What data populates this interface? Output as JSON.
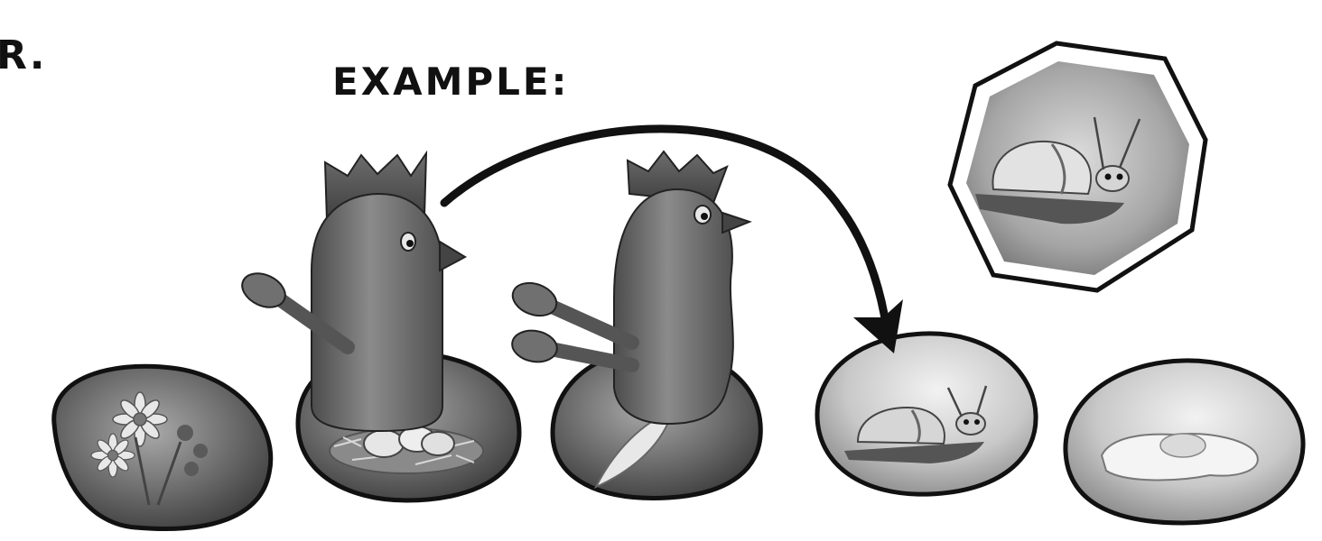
{
  "heading": {
    "partial_text": "R.",
    "example_label": "EXAMPLE:"
  },
  "tiles": [
    {
      "name": "flower-tile",
      "motif": "flowers"
    },
    {
      "name": "nest-tile",
      "motif": "nest-with-eggs"
    },
    {
      "name": "feather-tile",
      "motif": "feather"
    },
    {
      "name": "snail-tile",
      "motif": "snail"
    },
    {
      "name": "fried-egg-tile",
      "motif": "fried-egg"
    }
  ],
  "target_card": {
    "name": "snail-card",
    "motif": "snail",
    "shape": "octagon"
  },
  "figures": [
    {
      "name": "chicken-figure-one-wing",
      "wings": 1,
      "standing_on": "nest-tile"
    },
    {
      "name": "chicken-figure-two-wings",
      "wings": 2,
      "standing_on": "feather-tile"
    }
  ],
  "move_arrow": {
    "from": "chicken-figure-one-wing",
    "to": "snail-tile"
  },
  "colors": {
    "ink": "#111111",
    "tile_fill": "#6f6f6f",
    "figure_fill": "#6a6a6a",
    "card_fill": "#9a9a9a"
  }
}
